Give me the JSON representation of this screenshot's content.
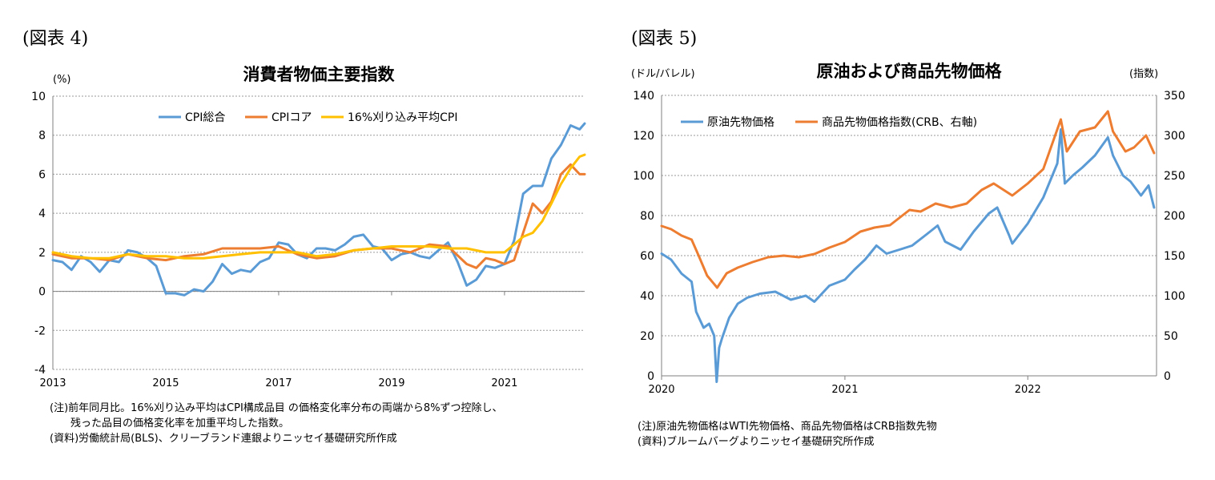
{
  "left": {
    "figure_label": "(図表 4)",
    "notes": [
      "(注)前年同月比。16%刈り込み平均はCPI構成品目 の価格変化率分布の両端から8%ずつ控除し、",
      "残った品目の価格変化率を加重平均した指数。",
      "(資料)労働統計局(BLS)、クリーブランド連銀よりニッセイ基礎研究所作成"
    ]
  },
  "right": {
    "figure_label": "(図表 5)",
    "notes": [
      "(注)原油先物価格はWTI先物価格、商品先物価格はCRB指数先物",
      "(資料)ブルームバーグよりニッセイ基礎研究所作成"
    ]
  },
  "chart_data": [
    {
      "type": "line",
      "title": "消費者物価主要指数",
      "ylabel": "(%)",
      "ylim": [
        -4,
        10
      ],
      "yticks": [
        "10",
        "8",
        "6",
        "4",
        "2",
        "0",
        "-2",
        "-4"
      ],
      "yticks_values": [
        10,
        8,
        6,
        4,
        2,
        0,
        -2,
        -4
      ],
      "xlim": [
        2013,
        2022.42
      ],
      "xticks": [
        "2013",
        "2015",
        "2017",
        "2019",
        "2021"
      ],
      "xticks_values": [
        2013,
        2015,
        2017,
        2019,
        2021
      ],
      "grid": "horizontal-dotted",
      "legend": "top",
      "series": [
        {
          "name": "CPI総合",
          "color": "#5B9BD5",
          "x": [
            2013.0,
            2013.17,
            2013.33,
            2013.5,
            2013.67,
            2013.83,
            2014.0,
            2014.17,
            2014.33,
            2014.5,
            2014.67,
            2014.83,
            2015.0,
            2015.17,
            2015.33,
            2015.5,
            2015.67,
            2015.83,
            2016.0,
            2016.17,
            2016.33,
            2016.5,
            2016.67,
            2016.83,
            2017.0,
            2017.17,
            2017.33,
            2017.5,
            2017.67,
            2017.83,
            2018.0,
            2018.17,
            2018.33,
            2018.5,
            2018.67,
            2018.83,
            2019.0,
            2019.17,
            2019.33,
            2019.5,
            2019.67,
            2019.83,
            2020.0,
            2020.17,
            2020.33,
            2020.5,
            2020.67,
            2020.83,
            2021.0,
            2021.17,
            2021.33,
            2021.5,
            2021.67,
            2021.83,
            2022.0,
            2022.17,
            2022.33,
            2022.42
          ],
          "y": [
            1.6,
            1.5,
            1.1,
            1.8,
            1.5,
            1.0,
            1.6,
            1.5,
            2.1,
            2.0,
            1.7,
            1.3,
            -0.1,
            -0.1,
            -0.2,
            0.1,
            0.0,
            0.5,
            1.4,
            0.9,
            1.1,
            1.0,
            1.5,
            1.7,
            2.5,
            2.4,
            1.9,
            1.7,
            2.2,
            2.2,
            2.1,
            2.4,
            2.8,
            2.9,
            2.3,
            2.2,
            1.6,
            1.9,
            2.0,
            1.8,
            1.7,
            2.1,
            2.5,
            1.5,
            0.3,
            0.6,
            1.3,
            1.2,
            1.4,
            2.6,
            5.0,
            5.4,
            5.4,
            6.8,
            7.5,
            8.5,
            8.3,
            8.6
          ]
        },
        {
          "name": "CPIコア",
          "color": "#ED7D31",
          "x": [
            2013.0,
            2013.33,
            2013.67,
            2014.0,
            2014.33,
            2014.67,
            2015.0,
            2015.33,
            2015.67,
            2016.0,
            2016.33,
            2016.67,
            2017.0,
            2017.33,
            2017.67,
            2018.0,
            2018.33,
            2018.67,
            2019.0,
            2019.33,
            2019.67,
            2020.0,
            2020.33,
            2020.5,
            2020.67,
            2020.83,
            2021.0,
            2021.17,
            2021.33,
            2021.5,
            2021.67,
            2021.83,
            2022.0,
            2022.17,
            2022.33,
            2022.42
          ],
          "y": [
            1.9,
            1.7,
            1.7,
            1.6,
            1.9,
            1.7,
            1.6,
            1.8,
            1.9,
            2.2,
            2.2,
            2.2,
            2.3,
            1.9,
            1.7,
            1.8,
            2.1,
            2.2,
            2.2,
            2.0,
            2.4,
            2.3,
            1.4,
            1.2,
            1.7,
            1.6,
            1.4,
            1.6,
            3.0,
            4.5,
            4.0,
            4.6,
            6.0,
            6.5,
            6.0,
            6.0
          ]
        },
        {
          "name": "16%刈り込み平均CPI",
          "color": "#FFC000",
          "x": [
            2013.0,
            2013.33,
            2013.67,
            2014.0,
            2014.33,
            2014.67,
            2015.0,
            2015.33,
            2015.67,
            2016.0,
            2016.33,
            2016.67,
            2017.0,
            2017.33,
            2017.67,
            2018.0,
            2018.33,
            2018.67,
            2019.0,
            2019.33,
            2019.67,
            2020.0,
            2020.33,
            2020.67,
            2021.0,
            2021.17,
            2021.33,
            2021.5,
            2021.67,
            2021.83,
            2022.0,
            2022.17,
            2022.33,
            2022.42
          ],
          "y": [
            2.0,
            1.8,
            1.7,
            1.7,
            1.9,
            1.8,
            1.8,
            1.7,
            1.7,
            1.8,
            1.9,
            2.0,
            2.0,
            2.0,
            1.8,
            1.9,
            2.1,
            2.2,
            2.3,
            2.3,
            2.3,
            2.2,
            2.2,
            2.0,
            2.0,
            2.4,
            2.8,
            3.0,
            3.6,
            4.5,
            5.5,
            6.3,
            6.9,
            7.0
          ]
        }
      ]
    },
    {
      "type": "line",
      "title": "原油および商品先物価格",
      "ylabel": "(ドル/バレル)",
      "ylabel_right": "(指数)",
      "ylim": [
        0,
        140
      ],
      "yticks": [
        "140",
        "120",
        "100",
        "80",
        "60",
        "40",
        "20",
        "0"
      ],
      "yticks_values": [
        140,
        120,
        100,
        80,
        60,
        40,
        20,
        0
      ],
      "ylim_right": [
        0,
        350
      ],
      "yticks_right": [
        "350",
        "300",
        "250",
        "200",
        "150",
        "100",
        "50",
        "0"
      ],
      "yticks_right_values": [
        350,
        300,
        250,
        200,
        150,
        100,
        50,
        0
      ],
      "xlim": [
        "2020-01-01",
        "2022-09-15"
      ],
      "xticks": [
        "2020",
        "2021",
        "2022"
      ],
      "xticks_values": [
        "2020-01-01",
        "2021-01-01",
        "2022-01-01"
      ],
      "grid": "horizontal-dotted",
      "legend": "top-left",
      "series": [
        {
          "name": "原油先物価格",
          "color": "#5B9BD5",
          "axis": "left",
          "x": [
            "2020-01-01",
            "2020-01-20",
            "2020-02-10",
            "2020-03-01",
            "2020-03-10",
            "2020-03-25",
            "2020-04-05",
            "2020-04-15",
            "2020-04-20",
            "2020-04-25",
            "2020-05-01",
            "2020-05-15",
            "2020-06-01",
            "2020-06-20",
            "2020-07-15",
            "2020-08-15",
            "2020-09-15",
            "2020-10-15",
            "2020-11-01",
            "2020-12-01",
            "2021-01-01",
            "2021-01-20",
            "2021-02-10",
            "2021-03-05",
            "2021-03-25",
            "2021-04-20",
            "2021-05-15",
            "2021-06-15",
            "2021-07-05",
            "2021-07-20",
            "2021-08-20",
            "2021-09-15",
            "2021-10-15",
            "2021-11-01",
            "2021-11-25",
            "2021-12-01",
            "2022-01-01",
            "2022-02-01",
            "2022-03-01",
            "2022-03-08",
            "2022-03-16",
            "2022-04-01",
            "2022-04-20",
            "2022-05-15",
            "2022-06-10",
            "2022-06-20",
            "2022-07-10",
            "2022-07-25",
            "2022-08-15",
            "2022-08-30",
            "2022-09-10"
          ],
          "y": [
            61,
            58,
            51,
            47,
            32,
            24,
            26,
            20,
            -3,
            14,
            19,
            29,
            36,
            39,
            41,
            42,
            38,
            40,
            37,
            45,
            48,
            53,
            58,
            65,
            61,
            63,
            65,
            71,
            75,
            67,
            63,
            72,
            81,
            84,
            70,
            66,
            76,
            89,
            106,
            123,
            96,
            100,
            104,
            110,
            119,
            110,
            100,
            97,
            90,
            95,
            84
          ]
        },
        {
          "name": "商品先物価格指数(CRB、右軸)",
          "color": "#ED7D31",
          "axis": "right",
          "x": [
            "2020-01-01",
            "2020-01-20",
            "2020-02-10",
            "2020-03-01",
            "2020-03-15",
            "2020-04-01",
            "2020-04-21",
            "2020-05-10",
            "2020-06-01",
            "2020-07-01",
            "2020-08-01",
            "2020-09-01",
            "2020-10-01",
            "2020-11-01",
            "2020-12-01",
            "2021-01-01",
            "2021-02-01",
            "2021-03-01",
            "2021-04-01",
            "2021-05-10",
            "2021-06-01",
            "2021-07-01",
            "2021-08-01",
            "2021-09-01",
            "2021-10-01",
            "2021-10-25",
            "2021-12-01",
            "2022-01-01",
            "2022-02-01",
            "2022-03-08",
            "2022-03-20",
            "2022-04-15",
            "2022-05-15",
            "2022-06-10",
            "2022-06-20",
            "2022-07-15",
            "2022-08-01",
            "2022-08-25",
            "2022-09-10"
          ],
          "y": [
            187,
            183,
            175,
            170,
            150,
            125,
            110,
            128,
            135,
            142,
            148,
            150,
            148,
            152,
            160,
            167,
            180,
            185,
            188,
            207,
            205,
            215,
            210,
            215,
            232,
            240,
            225,
            240,
            258,
            320,
            280,
            305,
            310,
            330,
            305,
            280,
            285,
            300,
            278
          ]
        }
      ]
    }
  ]
}
